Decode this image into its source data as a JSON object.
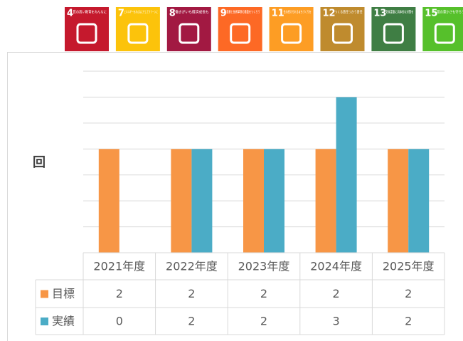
{
  "sdg_icons": [
    {
      "number": "4",
      "label": "質の高い教育をみんなに",
      "color": "#c5192d"
    },
    {
      "number": "7",
      "label": "エネルギーをみんなにそしてクリーンに",
      "color": "#fcc30b"
    },
    {
      "number": "8",
      "label": "働きがいも経済成長も",
      "color": "#a21942"
    },
    {
      "number": "9",
      "label": "産業と技術革新の基盤をつくろう",
      "color": "#fd6925"
    },
    {
      "number": "11",
      "label": "住み続けられるまちづくりを",
      "color": "#fd9d24"
    },
    {
      "number": "12",
      "label": "つくる責任つかう責任",
      "color": "#bf8b2e"
    },
    {
      "number": "13",
      "label": "気候変動に具体的な対策を",
      "color": "#3f7e44"
    },
    {
      "number": "15",
      "label": "陸の豊かさも守ろう",
      "color": "#56c02b"
    }
  ],
  "chart_data": {
    "type": "bar",
    "y_label": "回",
    "categories": [
      "2021年度",
      "2022年度",
      "2023年度",
      "2024年度",
      "2025年度"
    ],
    "series": [
      {
        "name": "目標",
        "color": "#f79646",
        "values": [
          2,
          2,
          2,
          2,
          2
        ]
      },
      {
        "name": "実績",
        "color": "#4bacc6",
        "values": [
          0,
          2,
          2,
          3,
          2
        ]
      }
    ],
    "ylim": [
      0,
      3.5
    ],
    "yticks": [
      0,
      0.5,
      1,
      1.5,
      2,
      2.5,
      3,
      3.5
    ],
    "grid": true
  }
}
